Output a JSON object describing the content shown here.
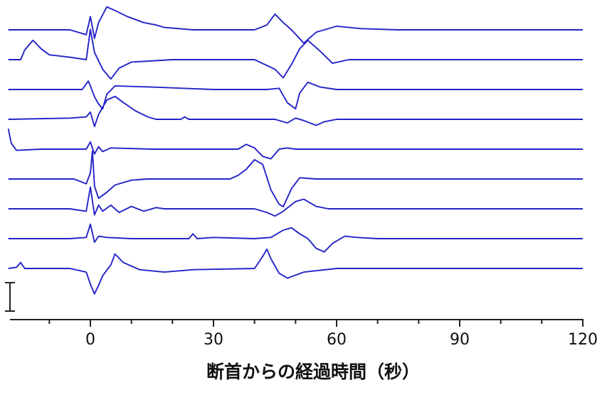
{
  "chart_data": {
    "type": "line",
    "title": "",
    "xlabel": "断首からの経過時間（秒）",
    "ylabel": "",
    "xlim": [
      -20,
      120
    ],
    "x_ticks": [
      0,
      30,
      60,
      90,
      120
    ],
    "x_tick_labels": [
      "0",
      "30",
      "60",
      "90",
      "120"
    ],
    "x_minor_tick_step": 10,
    "grid": false,
    "legend": "none",
    "scale_bar": true,
    "series_color": "#2323c8",
    "series": [
      {
        "points": [
          [
            -20,
            0
          ],
          [
            -5,
            0
          ],
          [
            -1,
            -0.4
          ],
          [
            0,
            1.1
          ],
          [
            1,
            -0.7
          ],
          [
            2,
            0.6
          ],
          [
            4,
            1.9
          ],
          [
            6,
            1.6
          ],
          [
            9,
            1.1
          ],
          [
            13,
            0.6
          ],
          [
            16,
            0.4
          ],
          [
            18,
            0.2
          ],
          [
            25,
            0
          ],
          [
            40,
            0
          ],
          [
            43,
            0.4
          ],
          [
            45,
            1.3
          ],
          [
            47,
            0.6
          ],
          [
            49,
            0
          ],
          [
            52,
            -1.1
          ],
          [
            55,
            -0.2
          ],
          [
            60,
            0.3
          ],
          [
            66,
            0.1
          ],
          [
            75,
            0
          ],
          [
            120,
            0
          ]
        ]
      },
      {
        "points": [
          [
            -20,
            0
          ],
          [
            -17,
            0
          ],
          [
            -16,
            0.8
          ],
          [
            -14,
            1.6
          ],
          [
            -12,
            0.9
          ],
          [
            -10,
            0.4
          ],
          [
            -5,
            0.2
          ],
          [
            -1,
            0
          ],
          [
            0,
            2.5
          ],
          [
            1,
            0.6
          ],
          [
            3,
            -0.8
          ],
          [
            5,
            -1.6
          ],
          [
            7,
            -0.7
          ],
          [
            10,
            -0.2
          ],
          [
            20,
            0
          ],
          [
            40,
            0
          ],
          [
            45,
            -0.8
          ],
          [
            47,
            -1.5
          ],
          [
            49,
            -0.4
          ],
          [
            51,
            0.9
          ],
          [
            53,
            1.6
          ],
          [
            56,
            0.7
          ],
          [
            59,
            -0.3
          ],
          [
            63,
            0
          ],
          [
            120,
            0
          ]
        ]
      },
      {
        "points": [
          [
            -20,
            0
          ],
          [
            -2,
            0
          ],
          [
            -0.5,
            0.7
          ],
          [
            0,
            0.3
          ],
          [
            1,
            -0.6
          ],
          [
            2,
            -1.2
          ],
          [
            3,
            -1.6
          ],
          [
            4,
            -0.4
          ],
          [
            6,
            0.3
          ],
          [
            15,
            0.2
          ],
          [
            30,
            0
          ],
          [
            43,
            0
          ],
          [
            46,
            0.1
          ],
          [
            48,
            -1.1
          ],
          [
            50,
            -1.6
          ],
          [
            51,
            -0.3
          ],
          [
            53,
            0.6
          ],
          [
            56,
            0.2
          ],
          [
            60,
            0
          ],
          [
            120,
            0
          ]
        ]
      },
      {
        "points": [
          [
            -20,
            0
          ],
          [
            -5,
            0.1
          ],
          [
            -1,
            0.2
          ],
          [
            0,
            0.6
          ],
          [
            1,
            -0.6
          ],
          [
            2,
            0.4
          ],
          [
            4,
            1.6
          ],
          [
            6,
            1.9
          ],
          [
            8,
            1.4
          ],
          [
            11,
            0.7
          ],
          [
            14,
            0.2
          ],
          [
            16,
            0
          ],
          [
            22,
            0
          ],
          [
            23,
            0.2
          ],
          [
            24,
            0
          ],
          [
            45,
            0
          ],
          [
            48,
            -0.3
          ],
          [
            50,
            0.1
          ],
          [
            52,
            -0.1
          ],
          [
            55,
            -0.5
          ],
          [
            57,
            -0.2
          ],
          [
            60,
            0
          ],
          [
            120,
            0
          ]
        ]
      },
      {
        "points": [
          [
            -20,
            1.7
          ],
          [
            -19.3,
            0.5
          ],
          [
            -18,
            -0.1
          ],
          [
            -12,
            0
          ],
          [
            -1,
            0
          ],
          [
            0,
            0.6
          ],
          [
            1,
            -0.4
          ],
          [
            2,
            0.2
          ],
          [
            3,
            -0.2
          ],
          [
            5,
            0.1
          ],
          [
            15,
            0
          ],
          [
            36,
            0
          ],
          [
            38,
            0.4
          ],
          [
            40,
            0.1
          ],
          [
            42,
            -0.6
          ],
          [
            44,
            -0.8
          ],
          [
            46,
            0
          ],
          [
            48,
            0.1
          ],
          [
            50,
            0
          ],
          [
            120,
            0
          ]
        ]
      },
      {
        "points": [
          [
            -20,
            0
          ],
          [
            -4,
            0
          ],
          [
            -1,
            -0.4
          ],
          [
            0,
            0.5
          ],
          [
            0.5,
            2.3
          ],
          [
            1,
            -0.6
          ],
          [
            2,
            -1.6
          ],
          [
            4,
            -1.1
          ],
          [
            6,
            -0.5
          ],
          [
            10,
            -0.1
          ],
          [
            14,
            0
          ],
          [
            34,
            0
          ],
          [
            36,
            0.3
          ],
          [
            38,
            0.8
          ],
          [
            40,
            1.6
          ],
          [
            42,
            1.2
          ],
          [
            44,
            -0.9
          ],
          [
            46,
            -2.1
          ],
          [
            47,
            -2.3
          ],
          [
            49,
            -0.8
          ],
          [
            51,
            0.1
          ],
          [
            55,
            0
          ],
          [
            120,
            0
          ]
        ]
      },
      {
        "points": [
          [
            -20,
            0
          ],
          [
            -5,
            0
          ],
          [
            -1,
            -0.2
          ],
          [
            0,
            1.8
          ],
          [
            1,
            -0.5
          ],
          [
            2,
            0.3
          ],
          [
            3,
            -0.2
          ],
          [
            5,
            0.3
          ],
          [
            7,
            -0.3
          ],
          [
            10,
            0.2
          ],
          [
            13,
            -0.2
          ],
          [
            16,
            0.1
          ],
          [
            18,
            0
          ],
          [
            40,
            0
          ],
          [
            43,
            -0.3
          ],
          [
            45,
            -0.6
          ],
          [
            47,
            -0.2
          ],
          [
            50,
            0.6
          ],
          [
            52,
            0.8
          ],
          [
            55,
            0.2
          ],
          [
            58,
            0
          ],
          [
            120,
            0
          ]
        ]
      },
      {
        "points": [
          [
            -20,
            0
          ],
          [
            -5,
            0
          ],
          [
            -1,
            0.1
          ],
          [
            0,
            1.2
          ],
          [
            1,
            -0.3
          ],
          [
            2,
            0.2
          ],
          [
            4,
            0.1
          ],
          [
            10,
            0
          ],
          [
            24,
            0
          ],
          [
            25,
            0.4
          ],
          [
            26,
            0
          ],
          [
            30,
            0.1
          ],
          [
            40,
            0
          ],
          [
            44,
            0.1
          ],
          [
            47,
            0.7
          ],
          [
            49,
            0.9
          ],
          [
            51,
            0.4
          ],
          [
            53,
            0
          ],
          [
            55,
            -0.8
          ],
          [
            57,
            -1.1
          ],
          [
            59,
            -0.4
          ],
          [
            62,
            0.2
          ],
          [
            65,
            0.1
          ],
          [
            70,
            0
          ],
          [
            120,
            0
          ]
        ]
      },
      {
        "points": [
          [
            -20,
            0
          ],
          [
            -18,
            0.1
          ],
          [
            -17,
            0.5
          ],
          [
            -16,
            0
          ],
          [
            -5,
            0
          ],
          [
            -1,
            -0.3
          ],
          [
            0,
            -1.3
          ],
          [
            1,
            -2.1
          ],
          [
            2,
            -1.4
          ],
          [
            3,
            -0.6
          ],
          [
            5,
            0.3
          ],
          [
            6,
            1.2
          ],
          [
            8,
            0.5
          ],
          [
            12,
            -0.1
          ],
          [
            18,
            -0.3
          ],
          [
            25,
            -0.1
          ],
          [
            40,
            0
          ],
          [
            42,
            1
          ],
          [
            43,
            1.6
          ],
          [
            44,
            0.8
          ],
          [
            46,
            -0.4
          ],
          [
            48,
            -0.8
          ],
          [
            52,
            -0.3
          ],
          [
            60,
            0
          ],
          [
            120,
            0
          ]
        ]
      }
    ]
  }
}
